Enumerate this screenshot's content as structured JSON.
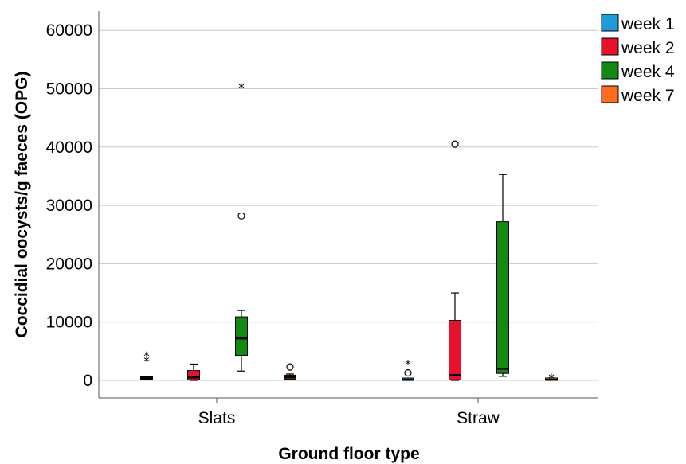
{
  "chart_data": {
    "type": "boxplot",
    "title": "",
    "xlabel": "Ground floor type",
    "ylabel": "Coccidial oocysts/g faeces (OPG)",
    "ylim": [
      -3500,
      63500
    ],
    "yticks": [
      0,
      10000,
      20000,
      30000,
      40000,
      50000,
      60000
    ],
    "categories": [
      "Slats",
      "Straw"
    ],
    "grid": "horizontal",
    "legend_position": "top-right",
    "series": [
      {
        "name": "week 1",
        "color": "#1f9bd9",
        "boxes": [
          {
            "category": "Slats",
            "whisker_low": 200,
            "q1": 200,
            "median": 400,
            "q3": 600,
            "whisker_high": 700,
            "outliers": [],
            "extremes": [
              3800,
              4700
            ]
          },
          {
            "category": "Straw",
            "whisker_low": 0,
            "q1": 0,
            "median": 100,
            "q3": 300,
            "whisker_high": 400,
            "outliers": [
              1300
            ],
            "extremes": [
              3300
            ]
          }
        ]
      },
      {
        "name": "week 2",
        "color": "#e8112d",
        "boxes": [
          {
            "category": "Slats",
            "whisker_low": 0,
            "q1": 100,
            "median": 500,
            "q3": 1700,
            "whisker_high": 2800,
            "outliers": [],
            "extremes": []
          },
          {
            "category": "Straw",
            "whisker_low": 0,
            "q1": 100,
            "median": 900,
            "q3": 10300,
            "whisker_high": 15000,
            "outliers": [
              40500
            ],
            "extremes": []
          }
        ]
      },
      {
        "name": "week 4",
        "color": "#128a12",
        "boxes": [
          {
            "category": "Slats",
            "whisker_low": 1600,
            "q1": 4300,
            "median": 7200,
            "q3": 10900,
            "whisker_high": 12000,
            "outliers": [
              28200
            ],
            "extremes": [
              50700
            ]
          },
          {
            "category": "Straw",
            "whisker_low": 700,
            "q1": 1200,
            "median": 2000,
            "q3": 27200,
            "whisker_high": 35300,
            "outliers": [],
            "extremes": []
          }
        ]
      },
      {
        "name": "week 7",
        "color": "#ff6b1f",
        "boxes": [
          {
            "category": "Slats",
            "whisker_low": 100,
            "q1": 200,
            "median": 500,
            "q3": 900,
            "whisker_high": 1100,
            "outliers": [
              2300
            ],
            "extremes": []
          },
          {
            "category": "Straw",
            "whisker_low": 0,
            "q1": 0,
            "median": 100,
            "q3": 200,
            "whisker_high": 200,
            "outliers": [],
            "extremes": [
              900
            ]
          }
        ]
      }
    ]
  }
}
